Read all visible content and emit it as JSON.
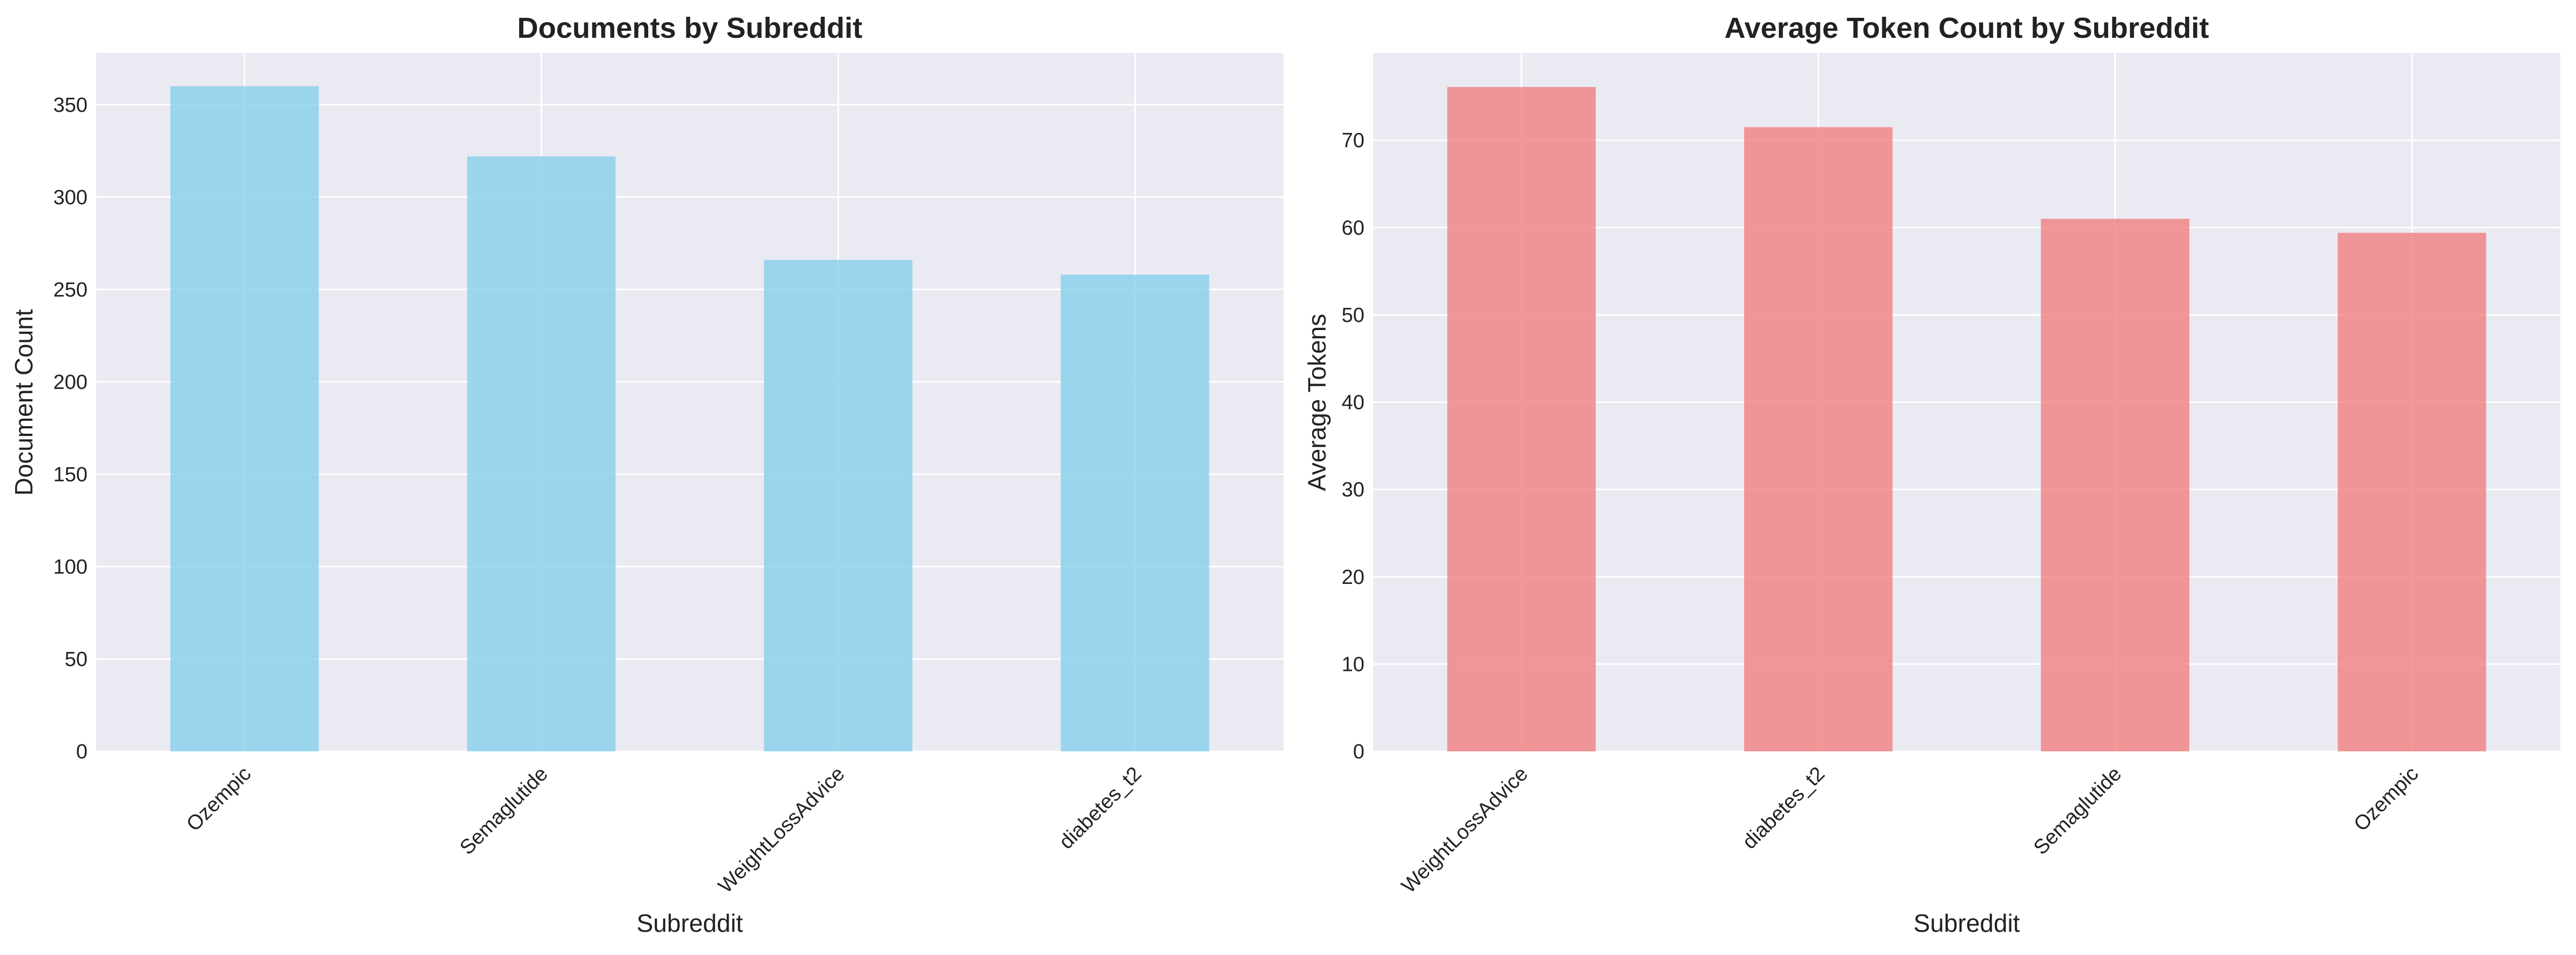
{
  "chart_data": [
    {
      "type": "bar",
      "title": "Documents by Subreddit",
      "xlabel": "Subreddit",
      "ylabel": "Document Count",
      "categories": [
        "Ozempic",
        "Semaglutide",
        "WeightLossAdvice",
        "diabetes_t2"
      ],
      "values": [
        360,
        322,
        266,
        258
      ],
      "ylim": [
        0,
        378
      ],
      "yticks": [
        0,
        50,
        100,
        150,
        200,
        250,
        300,
        350
      ],
      "bar_color": "#87ceeb",
      "grid": true
    },
    {
      "type": "bar",
      "title": "Average Token Count by Subreddit",
      "xlabel": "Subreddit",
      "ylabel": "Average Tokens",
      "categories": [
        "WeightLossAdvice",
        "diabetes_t2",
        "Semaglutide",
        "Ozempic"
      ],
      "values": [
        76.1,
        71.5,
        61.0,
        59.4
      ],
      "ylim": [
        0,
        80
      ],
      "yticks": [
        0,
        10,
        20,
        30,
        40,
        50,
        60,
        70
      ],
      "bar_color": "#f08080",
      "grid": true
    }
  ]
}
